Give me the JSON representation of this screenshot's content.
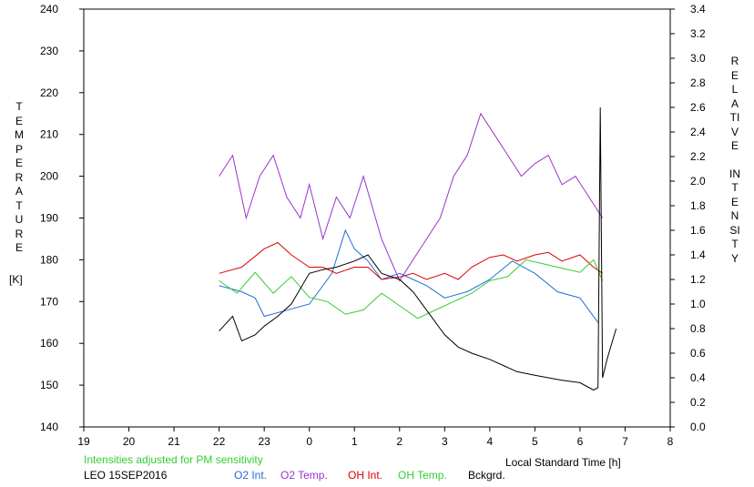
{
  "chart_data": {
    "type": "line",
    "ylabel_left": "TEMPERATURE",
    "ylabel_left_unit": "[K]",
    "ylabel_right": "RELATIVE INTENSITY",
    "xlabel": "Local Standard Time [h]",
    "note": "Intensities adjusted for PM sensitivity",
    "footer_id": "LEO 15SEP2016",
    "x_ticks": [
      "19",
      "20",
      "21",
      "22",
      "23",
      "0",
      "1",
      "2",
      "3",
      "4",
      "5",
      "6",
      "7",
      "8"
    ],
    "y_left_ticks": [
      140,
      150,
      160,
      170,
      180,
      190,
      200,
      210,
      220,
      230,
      240
    ],
    "y_right_ticks": [
      "0.0",
      "0.2",
      "0.4",
      "0.6",
      "0.8",
      "1.0",
      "1.2",
      "1.4",
      "1.6",
      "1.8",
      "2.0",
      "2.2",
      "2.4",
      "2.6",
      "2.8",
      "3.0",
      "3.2",
      "3.4"
    ],
    "xlim": [
      19,
      32
    ],
    "ylim_left": [
      140,
      240
    ],
    "ylim_right": [
      0,
      3.4
    ],
    "series": [
      {
        "name": "O2 Int.",
        "color": "#1f6fd6",
        "axis": "right",
        "x": [
          22.0,
          22.5,
          22.8,
          23.0,
          23.5,
          24.0,
          24.5,
          24.8,
          25.0,
          25.3,
          25.6,
          26.0,
          26.3,
          26.6,
          27.0,
          27.5,
          28.0,
          28.5,
          29.0,
          29.5,
          30.0,
          30.4
        ],
        "y": [
          1.15,
          1.1,
          1.05,
          0.9,
          0.95,
          1.0,
          1.25,
          1.6,
          1.45,
          1.35,
          1.2,
          1.25,
          1.2,
          1.15,
          1.05,
          1.1,
          1.2,
          1.35,
          1.25,
          1.1,
          1.05,
          0.85
        ]
      },
      {
        "name": "O2 Temp.",
        "color": "#9933cc",
        "axis": "left",
        "x": [
          22.0,
          22.3,
          22.6,
          22.9,
          23.2,
          23.5,
          23.8,
          24.0,
          24.3,
          24.6,
          24.9,
          25.2,
          25.6,
          26.0,
          26.3,
          26.6,
          26.9,
          27.2,
          27.5,
          27.8,
          28.1,
          28.4,
          28.7,
          29.0,
          29.3,
          29.6,
          29.9,
          30.2,
          30.5
        ],
        "y": [
          200,
          205,
          190,
          200,
          205,
          195,
          190,
          198,
          185,
          195,
          190,
          200,
          185,
          175,
          180,
          185,
          190,
          200,
          205,
          215,
          210,
          205,
          200,
          203,
          205,
          198,
          200,
          195,
          190
        ]
      },
      {
        "name": "OH Int.",
        "color": "#dd0000",
        "axis": "right",
        "x": [
          22.0,
          22.5,
          23.0,
          23.3,
          23.6,
          24.0,
          24.3,
          24.6,
          25.0,
          25.3,
          25.6,
          26.0,
          26.3,
          26.6,
          27.0,
          27.3,
          27.6,
          28.0,
          28.3,
          28.6,
          29.0,
          29.3,
          29.6,
          30.0,
          30.3,
          30.5
        ],
        "y": [
          1.25,
          1.3,
          1.45,
          1.5,
          1.4,
          1.3,
          1.3,
          1.25,
          1.3,
          1.3,
          1.2,
          1.22,
          1.25,
          1.2,
          1.25,
          1.2,
          1.3,
          1.38,
          1.4,
          1.35,
          1.4,
          1.42,
          1.35,
          1.4,
          1.3,
          1.25
        ]
      },
      {
        "name": "OH Temp.",
        "color": "#33cc33",
        "axis": "left",
        "x": [
          22.0,
          22.4,
          22.8,
          23.2,
          23.6,
          24.0,
          24.4,
          24.8,
          25.2,
          25.6,
          26.0,
          26.4,
          26.8,
          27.2,
          27.6,
          28.0,
          28.4,
          28.8,
          29.2,
          29.6,
          30.0,
          30.3,
          30.5
        ],
        "y": [
          175,
          172,
          177,
          172,
          176,
          171,
          170,
          167,
          168,
          172,
          169,
          166,
          168,
          170,
          172,
          175,
          176,
          180,
          179,
          178,
          177,
          180,
          175
        ]
      },
      {
        "name": "Bckgrd.",
        "color": "#000000",
        "axis": "right",
        "x": [
          22.0,
          22.3,
          22.5,
          22.8,
          23.0,
          23.3,
          23.6,
          24.0,
          24.3,
          24.6,
          25.0,
          25.3,
          25.6,
          26.0,
          26.3,
          26.6,
          27.0,
          27.3,
          27.6,
          28.0,
          28.3,
          28.6,
          29.0,
          29.3,
          29.6,
          30.0,
          30.3,
          30.4,
          30.45,
          30.5,
          30.6,
          30.8
        ],
        "y": [
          0.78,
          0.9,
          0.7,
          0.75,
          0.82,
          0.9,
          1.0,
          1.25,
          1.28,
          1.3,
          1.35,
          1.4,
          1.25,
          1.2,
          1.1,
          0.95,
          0.75,
          0.65,
          0.6,
          0.55,
          0.5,
          0.45,
          0.42,
          0.4,
          0.38,
          0.36,
          0.3,
          0.32,
          2.6,
          0.4,
          0.55,
          0.8
        ]
      }
    ]
  }
}
